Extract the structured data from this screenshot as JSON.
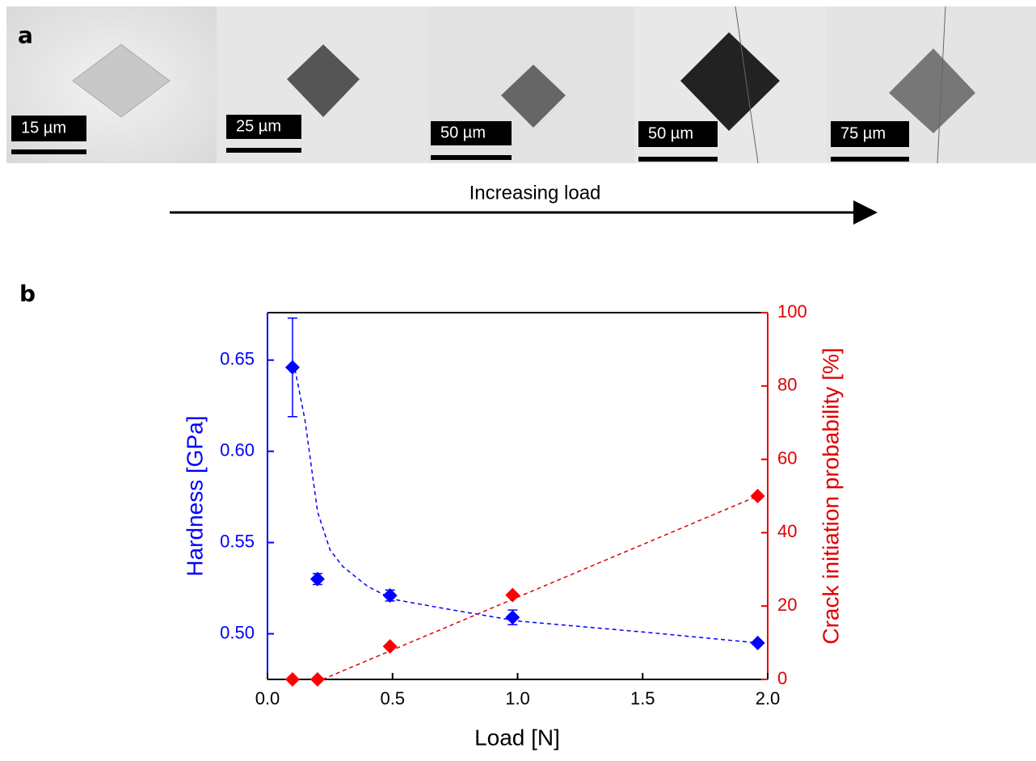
{
  "panel_a": {
    "label": "a",
    "scale_bars": [
      "15 µm",
      "25 µm",
      "50 µm",
      "50 µm",
      "75 µm"
    ],
    "arrow_label": "Increasing load"
  },
  "panel_b": {
    "label": "b"
  },
  "chart_data": {
    "type": "scatter",
    "x_label": "Load [N]",
    "y_label": "Hardness [GPa]",
    "y2_label": "Crack initiation probability [%]",
    "xlim": [
      0,
      2.0
    ],
    "xticks": [
      {
        "value": 0,
        "label": "0.0"
      },
      0.5,
      {
        "value": 1,
        "label": "1.0"
      },
      1.5,
      {
        "value": 2,
        "label": "2.0"
      }
    ],
    "ylim": [
      0.475,
      0.676
    ],
    "yticks": [
      {
        "value": 0.5,
        "label": "0.50"
      },
      0.55,
      {
        "value": 0.6,
        "label": "0.60"
      },
      0.65
    ],
    "y2lim": [
      0,
      100
    ],
    "y2ticks": [
      0,
      20,
      40,
      60,
      80,
      100
    ],
    "y_color": "#0000ff",
    "y2_color": "#e00000",
    "series": [
      {
        "color": "#0000ff",
        "x": [
          0.1,
          0.2,
          0.49,
          0.98,
          1.96
        ],
        "values": [
          0.646,
          0.53,
          0.521,
          0.509,
          0.495
        ],
        "errors": [
          0.027,
          0.003,
          0.003,
          0.004,
          0.001
        ]
      },
      {
        "color": "#ff0000",
        "axis": "y2",
        "x": [
          0.1,
          0.2,
          0.49,
          0.98,
          1.96
        ],
        "values": [
          0,
          0,
          9,
          23,
          50
        ]
      },
      {
        "color": "#0000ff",
        "style": "dashed",
        "x": [
          0.11,
          0.15,
          0.2,
          0.25,
          0.3,
          0.4,
          0.5,
          0.7,
          1.0,
          1.5,
          1.96
        ],
        "values": [
          0.645,
          0.617,
          0.567,
          0.546,
          0.537,
          0.526,
          0.519,
          0.514,
          0.507,
          0.501,
          0.495
        ]
      },
      {
        "color": "#e00000",
        "style": "dashed",
        "axis": "y2",
        "x": [
          0.22,
          1.96
        ],
        "values": [
          0,
          50
        ]
      }
    ]
  }
}
